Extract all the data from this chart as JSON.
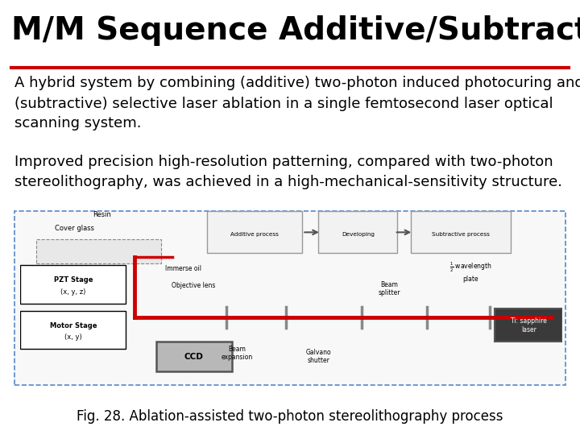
{
  "title": "M/M Sequence Additive/Subtractive",
  "title_color": "#000000",
  "title_fontsize": 28,
  "separator_color": "#cc0000",
  "separator_linewidth": 3,
  "body_text1": "A hybrid system by combining (additive) two-photon induced photocuring and\n(subtractive) selective laser ablation in a single femtosecond laser optical\nscanning system.",
  "body_text2": "Improved precision high-resolution patterning, compared with two-photon\nstereolithography, was achieved in a high-mechanical-sensitivity structure.",
  "caption": "Fig. 28. Ablation-assisted two-photon stereolithography process",
  "body_fontsize": 13,
  "caption_fontsize": 12,
  "bg_color": "#ffffff",
  "body_text_color": "#000000"
}
